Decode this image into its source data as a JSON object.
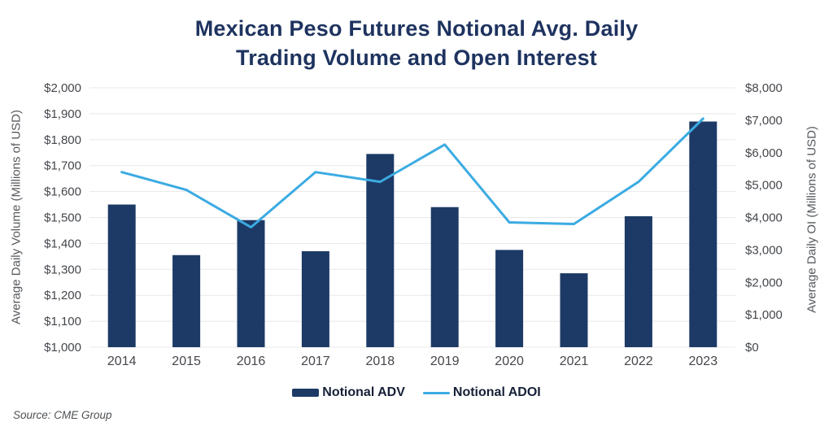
{
  "title": {
    "line1": "Mexican Peso Futures Notional Avg. Daily",
    "line2": "Trading Volume and Open Interest"
  },
  "source": {
    "text": "Source: CME Group"
  },
  "colors": {
    "title": "#1E335F",
    "bar": "#1D3A66",
    "line": "#3BABE2",
    "grid": "#E8E8E8",
    "tick": "#44474C",
    "axis_title": "#55585C",
    "legend_text": "#162038",
    "source": "#4E5256",
    "background": "#FFFFFF"
  },
  "chart_data": {
    "type": "bar+line",
    "title": "Mexican Peso Futures Notional Avg. Daily Trading Volume and Open Interest",
    "categories": [
      "2014",
      "2015",
      "2016",
      "2017",
      "2018",
      "2019",
      "2020",
      "2021",
      "2022",
      "2023"
    ],
    "series": [
      {
        "name": "Notional ADV",
        "type": "bar",
        "axis": "left",
        "color": "#1D3A66",
        "values": [
          1550,
          1355,
          1490,
          1370,
          1745,
          1540,
          1375,
          1285,
          1505,
          1870
        ]
      },
      {
        "name": "Notional ADOI",
        "type": "line",
        "axis": "right",
        "color": "#3BABE2",
        "values": [
          5400,
          4850,
          3700,
          5400,
          5100,
          6250,
          3850,
          3800,
          5100,
          7050
        ]
      }
    ],
    "left_ylabel": "Average Daily Volume (Millions of USD)",
    "right_ylabel": "Average Daily OI (Millions of USD)",
    "left_ylim": [
      1000,
      2000
    ],
    "right_ylim": [
      0,
      8000
    ],
    "left_ticks": [
      "$2,000",
      "$1,900",
      "$1,800",
      "$1,700",
      "$1,600",
      "$1,500",
      "$1,400",
      "$1,300",
      "$1,200",
      "$1,100",
      "$1,000"
    ],
    "right_ticks": [
      "$8,000",
      "$7,000",
      "$6,000",
      "$5,000",
      "$4,000",
      "$3,000",
      "$2,000",
      "$1,000",
      "$0"
    ],
    "grid": true,
    "legend_position": "bottom"
  }
}
